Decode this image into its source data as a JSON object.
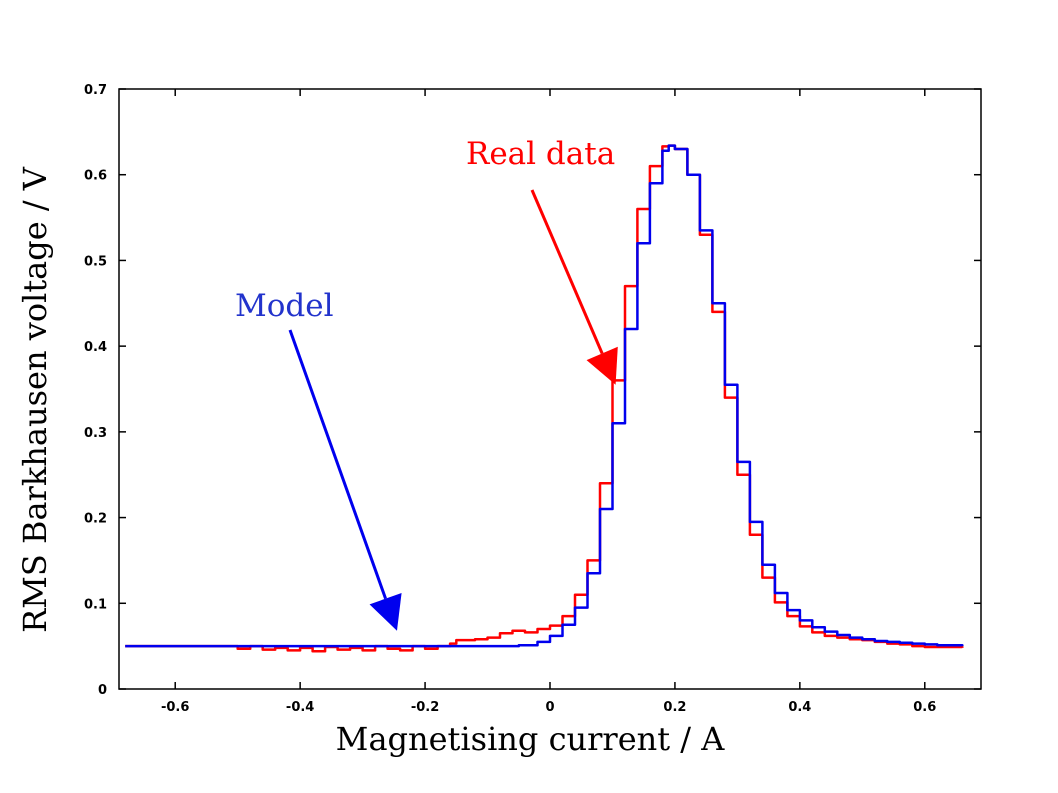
{
  "chart_data": {
    "type": "line",
    "title": "",
    "xlabel": "Magnetising current / A",
    "ylabel": "RMS Barkhausen voltage / V",
    "xlim": [
      -0.69,
      0.69
    ],
    "ylim": [
      0,
      0.7
    ],
    "xticks": [
      -0.6,
      -0.4,
      -0.2,
      0,
      0.2,
      0.4,
      0.6
    ],
    "xtick_labels": [
      "-0.6",
      "-0.4",
      "-0.2",
      "0",
      "0.2",
      "0.4",
      "0.6"
    ],
    "yticks": [
      0,
      0.1,
      0.2,
      0.3,
      0.4,
      0.5,
      0.6,
      0.7
    ],
    "ytick_labels": [
      "0",
      "0.1",
      "0.2",
      "0.3",
      "0.4",
      "0.5",
      "0.6",
      "0.7"
    ],
    "grid": false,
    "series": [
      {
        "name": "Real data",
        "color": "#ff0000",
        "x": [
          -0.68,
          -0.52,
          -0.5,
          -0.48,
          -0.46,
          -0.44,
          -0.42,
          -0.4,
          -0.38,
          -0.36,
          -0.34,
          -0.32,
          -0.3,
          -0.28,
          -0.26,
          -0.24,
          -0.22,
          -0.2,
          -0.18,
          -0.16,
          -0.15,
          -0.12,
          -0.1,
          -0.08,
          -0.06,
          -0.04,
          -0.02,
          0.0,
          0.02,
          0.04,
          0.06,
          0.08,
          0.1,
          0.12,
          0.14,
          0.16,
          0.18,
          0.19,
          0.2,
          0.22,
          0.24,
          0.26,
          0.28,
          0.3,
          0.32,
          0.34,
          0.36,
          0.38,
          0.4,
          0.42,
          0.44,
          0.46,
          0.48,
          0.5,
          0.52,
          0.54,
          0.56,
          0.58,
          0.6,
          0.62,
          0.64,
          0.66
        ],
        "y": [
          0.05,
          0.05,
          0.047,
          0.05,
          0.046,
          0.048,
          0.045,
          0.048,
          0.044,
          0.049,
          0.046,
          0.048,
          0.045,
          0.05,
          0.047,
          0.045,
          0.05,
          0.047,
          0.05,
          0.053,
          0.057,
          0.058,
          0.06,
          0.065,
          0.068,
          0.066,
          0.07,
          0.074,
          0.085,
          0.11,
          0.15,
          0.24,
          0.36,
          0.47,
          0.56,
          0.61,
          0.633,
          0.634,
          0.63,
          0.6,
          0.53,
          0.44,
          0.34,
          0.25,
          0.18,
          0.13,
          0.101,
          0.085,
          0.073,
          0.066,
          0.062,
          0.06,
          0.058,
          0.057,
          0.055,
          0.053,
          0.052,
          0.05,
          0.049,
          0.049,
          0.049,
          0.048
        ]
      },
      {
        "name": "Model",
        "color": "#0000ee",
        "x": [
          -0.68,
          -0.6,
          -0.5,
          -0.4,
          -0.3,
          -0.2,
          -0.1,
          -0.05,
          -0.02,
          0.0,
          0.02,
          0.04,
          0.06,
          0.08,
          0.1,
          0.12,
          0.14,
          0.16,
          0.18,
          0.19,
          0.2,
          0.22,
          0.24,
          0.26,
          0.28,
          0.3,
          0.32,
          0.34,
          0.36,
          0.38,
          0.4,
          0.42,
          0.44,
          0.46,
          0.48,
          0.5,
          0.52,
          0.54,
          0.56,
          0.58,
          0.6,
          0.62,
          0.64,
          0.66
        ],
        "y": [
          0.05,
          0.05,
          0.05,
          0.05,
          0.05,
          0.05,
          0.05,
          0.051,
          0.055,
          0.062,
          0.075,
          0.095,
          0.135,
          0.21,
          0.31,
          0.42,
          0.52,
          0.59,
          0.628,
          0.634,
          0.63,
          0.6,
          0.535,
          0.45,
          0.355,
          0.265,
          0.195,
          0.145,
          0.112,
          0.092,
          0.08,
          0.072,
          0.067,
          0.063,
          0.06,
          0.058,
          0.056,
          0.055,
          0.054,
          0.053,
          0.052,
          0.051,
          0.051,
          0.05
        ]
      }
    ],
    "annotations": [
      {
        "text": "Real data",
        "color": "#ff0000",
        "arrow_to_x": 0.105,
        "arrow_to_y": 0.355
      },
      {
        "text": "Model",
        "color": "#2233cc",
        "arrow_to_x": -0.245,
        "arrow_to_y": 0.068
      }
    ]
  }
}
